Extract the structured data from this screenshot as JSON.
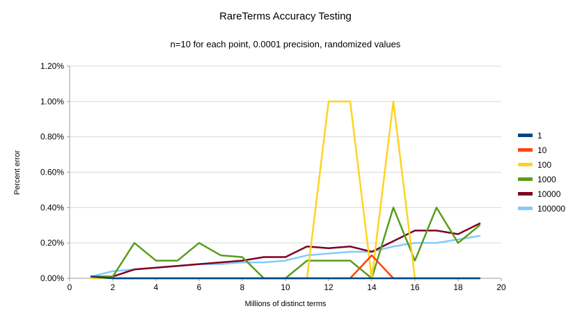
{
  "title": "RareTerms Accuracy Testing",
  "subtitle": "n=10 for each point, 0.0001 precision, randomized values",
  "chart_data": {
    "type": "line",
    "title": "RareTerms Accuracy Testing",
    "subtitle": "n=10 for each point, 0.0001 precision, randomized values",
    "xlabel": "Millions of distinct terms",
    "ylabel": "Percent error",
    "xlim": [
      0,
      20
    ],
    "ylim": [
      0,
      1.2
    ],
    "y_unit": "percent",
    "grid": "horizontal",
    "legend_position": "right",
    "x_ticks": [
      0,
      2,
      4,
      6,
      8,
      10,
      12,
      14,
      16,
      18,
      20
    ],
    "y_ticks": [
      0,
      0.2,
      0.4,
      0.6,
      0.8,
      1.0,
      1.2
    ],
    "y_tick_labels": [
      "0.00%",
      "0.20%",
      "0.40%",
      "0.60%",
      "0.80%",
      "1.00%",
      "1.20%"
    ],
    "x": [
      1,
      2,
      3,
      4,
      5,
      6,
      7,
      8,
      9,
      10,
      11,
      12,
      13,
      14,
      15,
      16,
      17,
      18,
      19
    ],
    "series": [
      {
        "name": "1",
        "color": "#004586",
        "values": [
          0.01,
          0,
          0,
          0,
          0,
          0,
          0,
          0,
          0,
          0,
          0,
          0,
          0,
          0,
          0,
          0,
          0,
          0,
          0
        ]
      },
      {
        "name": "10",
        "color": "#ff420e",
        "values": [
          0.01,
          0,
          0,
          0,
          0,
          0,
          0,
          0,
          0,
          0,
          0,
          0,
          0,
          0.13,
          0,
          0,
          0,
          0,
          0
        ]
      },
      {
        "name": "100",
        "color": "#ffd320",
        "values": [
          0,
          0,
          0,
          0,
          0,
          0,
          0,
          0,
          0,
          0,
          0,
          1.0,
          1.0,
          0,
          1.0,
          0,
          0,
          0,
          0
        ]
      },
      {
        "name": "1000",
        "color": "#579d1c",
        "values": [
          0.01,
          0.01,
          0.2,
          0.1,
          0.1,
          0.2,
          0.13,
          0.12,
          0,
          0,
          0.1,
          0.1,
          0.1,
          0,
          0.4,
          0.1,
          0.4,
          0.2,
          0.3
        ]
      },
      {
        "name": "10000",
        "color": "#7e0021",
        "values": [
          0.01,
          0.01,
          0.05,
          0.06,
          0.07,
          0.08,
          0.09,
          0.1,
          0.12,
          0.12,
          0.18,
          0.17,
          0.18,
          0.15,
          0.21,
          0.27,
          0.27,
          0.25,
          0.31
        ]
      },
      {
        "name": "100000",
        "color": "#83caff",
        "values": [
          0.01,
          0.04,
          0.05,
          0.06,
          0.07,
          0.08,
          0.08,
          0.09,
          0.09,
          0.1,
          0.13,
          0.14,
          0.15,
          0.15,
          0.18,
          0.2,
          0.2,
          0.22,
          0.24
        ]
      }
    ],
    "style": {
      "grid_color": "#d9d9d9",
      "axis_color": "#9b9b9b",
      "text_color": "#000000",
      "background": "#ffffff"
    }
  }
}
